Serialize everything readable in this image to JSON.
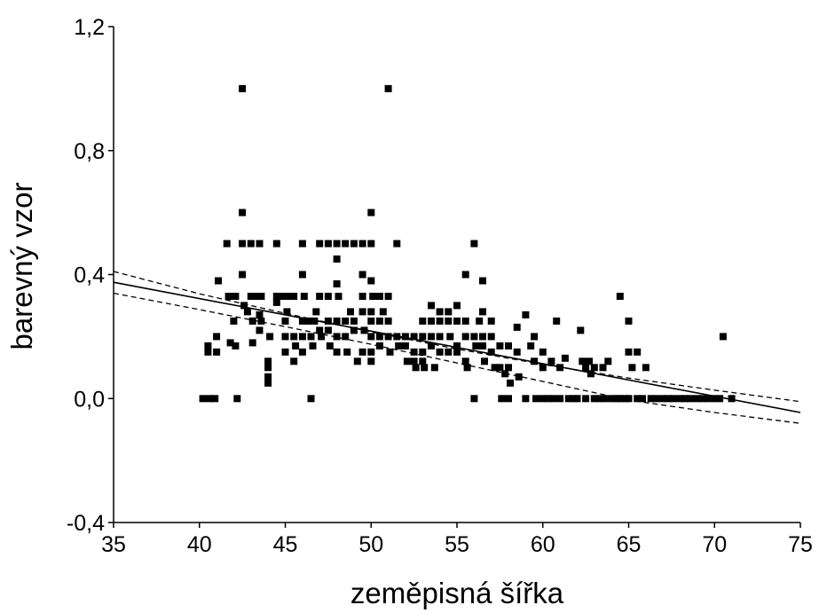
{
  "chart_data": {
    "type": "scatter",
    "xlabel": "zeměpisná šířka",
    "ylabel": "barevný vzor",
    "xlim": [
      35,
      75
    ],
    "ylim": [
      -0.4,
      1.2
    ],
    "x_ticks": [
      35,
      40,
      45,
      50,
      55,
      60,
      65,
      70,
      75
    ],
    "x_tick_labels": [
      "35",
      "40",
      "45",
      "50",
      "55",
      "60",
      "65",
      "70",
      "75"
    ],
    "y_ticks": [
      -0.4,
      0.0,
      0.4,
      0.8,
      1.2
    ],
    "y_tick_labels": [
      "-0,4",
      "0,0",
      "0,4",
      "0,8",
      "1,2"
    ],
    "grid": false,
    "series": [
      {
        "marker": "square",
        "color": "#000000",
        "points": [
          [
            40.2,
            0.0
          ],
          [
            40.6,
            0.0
          ],
          [
            40.9,
            0.0
          ],
          [
            40.5,
            0.17
          ],
          [
            40.5,
            0.15
          ],
          [
            41.0,
            0.2
          ],
          [
            41.0,
            0.15
          ],
          [
            41.1,
            0.38
          ],
          [
            41.6,
            0.5
          ],
          [
            41.7,
            0.33
          ],
          [
            41.9,
            0.33
          ],
          [
            41.8,
            0.18
          ],
          [
            42.0,
            0.25
          ],
          [
            42.1,
            0.33
          ],
          [
            42.2,
            0.0
          ],
          [
            42.1,
            0.17
          ],
          [
            42.5,
            1.0
          ],
          [
            42.5,
            0.6
          ],
          [
            42.5,
            0.5
          ],
          [
            42.5,
            0.4
          ],
          [
            42.6,
            0.3
          ],
          [
            42.8,
            0.28
          ],
          [
            43.0,
            0.5
          ],
          [
            43.0,
            0.33
          ],
          [
            43.1,
            0.25
          ],
          [
            43.1,
            0.18
          ],
          [
            43.3,
            0.33
          ],
          [
            43.5,
            0.5
          ],
          [
            43.6,
            0.33
          ],
          [
            43.5,
            0.27
          ],
          [
            43.6,
            0.25
          ],
          [
            43.5,
            0.22
          ],
          [
            44.0,
            0.12
          ],
          [
            44.0,
            0.1
          ],
          [
            44.0,
            0.07
          ],
          [
            44.0,
            0.05
          ],
          [
            44.1,
            0.2
          ],
          [
            44.5,
            0.5
          ],
          [
            44.5,
            0.33
          ],
          [
            44.5,
            0.31
          ],
          [
            44.6,
            0.33
          ],
          [
            45.0,
            0.33
          ],
          [
            45.1,
            0.28
          ],
          [
            45.0,
            0.25
          ],
          [
            45.0,
            0.2
          ],
          [
            45.0,
            0.15
          ],
          [
            45.3,
            0.33
          ],
          [
            45.5,
            0.33
          ],
          [
            45.5,
            0.2
          ],
          [
            45.5,
            0.12
          ],
          [
            45.6,
            0.17
          ],
          [
            46.0,
            0.5
          ],
          [
            46.0,
            0.4
          ],
          [
            46.1,
            0.33
          ],
          [
            46.0,
            0.25
          ],
          [
            46.0,
            0.2
          ],
          [
            46.0,
            0.15
          ],
          [
            46.3,
            0.25
          ],
          [
            46.5,
            0.0
          ],
          [
            46.5,
            0.2
          ],
          [
            46.6,
            0.17
          ],
          [
            46.7,
            0.25
          ],
          [
            46.8,
            0.28
          ],
          [
            47.0,
            0.5
          ],
          [
            47.0,
            0.33
          ],
          [
            47.0,
            0.22
          ],
          [
            47.1,
            0.2
          ],
          [
            47.5,
            0.5
          ],
          [
            47.5,
            0.33
          ],
          [
            47.5,
            0.25
          ],
          [
            47.5,
            0.22
          ],
          [
            47.6,
            0.17
          ],
          [
            48.0,
            0.5
          ],
          [
            48.0,
            0.45
          ],
          [
            48.0,
            0.37
          ],
          [
            48.1,
            0.33
          ],
          [
            48.0,
            0.25
          ],
          [
            48.0,
            0.2
          ],
          [
            48.0,
            0.15
          ],
          [
            48.5,
            0.5
          ],
          [
            48.5,
            0.25
          ],
          [
            48.5,
            0.2
          ],
          [
            48.6,
            0.15
          ],
          [
            48.8,
            0.28
          ],
          [
            49.0,
            0.5
          ],
          [
            49.0,
            0.25
          ],
          [
            49.0,
            0.22
          ],
          [
            49.2,
            0.12
          ],
          [
            49.5,
            0.5
          ],
          [
            49.5,
            0.4
          ],
          [
            49.5,
            0.33
          ],
          [
            49.5,
            0.28
          ],
          [
            49.6,
            0.22
          ],
          [
            49.5,
            0.15
          ],
          [
            50.0,
            0.6
          ],
          [
            50.0,
            0.5
          ],
          [
            50.0,
            0.38
          ],
          [
            50.1,
            0.33
          ],
          [
            50.0,
            0.28
          ],
          [
            50.0,
            0.25
          ],
          [
            50.0,
            0.2
          ],
          [
            50.0,
            0.15
          ],
          [
            50.0,
            0.12
          ],
          [
            50.5,
            0.33
          ],
          [
            50.5,
            0.25
          ],
          [
            50.5,
            0.2
          ],
          [
            50.5,
            0.17
          ],
          [
            50.7,
            0.28
          ],
          [
            51.0,
            1.0
          ],
          [
            51.0,
            0.33
          ],
          [
            51.0,
            0.25
          ],
          [
            51.0,
            0.2
          ],
          [
            51.1,
            0.15
          ],
          [
            51.5,
            0.5
          ],
          [
            51.5,
            0.2
          ],
          [
            51.6,
            0.17
          ],
          [
            52.0,
            0.2
          ],
          [
            52.0,
            0.17
          ],
          [
            52.1,
            0.12
          ],
          [
            52.5,
            0.2
          ],
          [
            52.5,
            0.15
          ],
          [
            52.5,
            0.12
          ],
          [
            52.6,
            0.1
          ],
          [
            53.0,
            0.25
          ],
          [
            53.0,
            0.2
          ],
          [
            53.0,
            0.15
          ],
          [
            53.0,
            0.12
          ],
          [
            53.1,
            0.1
          ],
          [
            53.5,
            0.3
          ],
          [
            53.5,
            0.25
          ],
          [
            53.5,
            0.2
          ],
          [
            53.5,
            0.17
          ],
          [
            53.7,
            0.1
          ],
          [
            54.0,
            0.28
          ],
          [
            54.0,
            0.25
          ],
          [
            54.0,
            0.2
          ],
          [
            54.0,
            0.15
          ],
          [
            54.5,
            0.28
          ],
          [
            54.5,
            0.25
          ],
          [
            54.5,
            0.15
          ],
          [
            54.6,
            0.2
          ],
          [
            55.0,
            0.3
          ],
          [
            55.0,
            0.25
          ],
          [
            55.0,
            0.17
          ],
          [
            55.0,
            0.15
          ],
          [
            55.5,
            0.4
          ],
          [
            55.5,
            0.25
          ],
          [
            55.5,
            0.2
          ],
          [
            55.5,
            0.12
          ],
          [
            55.6,
            0.1
          ],
          [
            56.0,
            0.5
          ],
          [
            56.0,
            0.0
          ],
          [
            56.0,
            0.2
          ],
          [
            56.1,
            0.17
          ],
          [
            56.3,
            0.25
          ],
          [
            56.5,
            0.38
          ],
          [
            56.5,
            0.28
          ],
          [
            56.5,
            0.2
          ],
          [
            56.5,
            0.17
          ],
          [
            56.6,
            0.12
          ],
          [
            57.0,
            0.25
          ],
          [
            57.0,
            0.2
          ],
          [
            57.0,
            0.15
          ],
          [
            57.2,
            0.1
          ],
          [
            57.5,
            0.17
          ],
          [
            57.5,
            0.1
          ],
          [
            57.6,
            0.0
          ],
          [
            57.8,
            0.08
          ],
          [
            58.0,
            0.0
          ],
          [
            58.0,
            0.17
          ],
          [
            58.0,
            0.1
          ],
          [
            58.1,
            0.05
          ],
          [
            58.5,
            0.23
          ],
          [
            58.5,
            0.15
          ],
          [
            58.6,
            0.07
          ],
          [
            59.0,
            0.27
          ],
          [
            59.0,
            0.0
          ],
          [
            59.3,
            0.17
          ],
          [
            59.5,
            0.2
          ],
          [
            59.5,
            0.12
          ],
          [
            59.6,
            0.0
          ],
          [
            60.0,
            0.15
          ],
          [
            60.0,
            0.1
          ],
          [
            60.0,
            0.0
          ],
          [
            60.3,
            0.0
          ],
          [
            60.5,
            0.12
          ],
          [
            60.6,
            0.0
          ],
          [
            60.8,
            0.25
          ],
          [
            61.0,
            0.1
          ],
          [
            61.0,
            0.0
          ],
          [
            61.3,
            0.13
          ],
          [
            61.5,
            0.0
          ],
          [
            61.8,
            0.0
          ],
          [
            62.0,
            0.0
          ],
          [
            62.2,
            0.22
          ],
          [
            62.3,
            0.12
          ],
          [
            62.5,
            0.1
          ],
          [
            62.5,
            0.0
          ],
          [
            62.7,
            0.12
          ],
          [
            62.8,
            0.08
          ],
          [
            63.0,
            0.1
          ],
          [
            63.0,
            0.0
          ],
          [
            63.3,
            0.0
          ],
          [
            63.5,
            0.1
          ],
          [
            63.6,
            0.0
          ],
          [
            63.8,
            0.12
          ],
          [
            64.0,
            0.0
          ],
          [
            64.3,
            0.0
          ],
          [
            64.5,
            0.33
          ],
          [
            64.5,
            0.0
          ],
          [
            64.8,
            0.0
          ],
          [
            65.0,
            0.25
          ],
          [
            65.0,
            0.15
          ],
          [
            65.0,
            0.0
          ],
          [
            65.2,
            0.1
          ],
          [
            65.5,
            0.15
          ],
          [
            65.5,
            0.0
          ],
          [
            65.8,
            0.0
          ],
          [
            66.0,
            0.1
          ],
          [
            66.3,
            0.0
          ],
          [
            66.6,
            0.0
          ],
          [
            67.0,
            0.0
          ],
          [
            67.3,
            0.0
          ],
          [
            67.6,
            0.0
          ],
          [
            68.0,
            0.0
          ],
          [
            68.3,
            0.0
          ],
          [
            68.6,
            0.0
          ],
          [
            69.0,
            0.0
          ],
          [
            69.3,
            0.0
          ],
          [
            69.6,
            0.0
          ],
          [
            70.0,
            0.0
          ],
          [
            70.3,
            0.0
          ],
          [
            70.5,
            0.2
          ],
          [
            71.0,
            0.0
          ]
        ]
      }
    ],
    "regression": {
      "style": "solid",
      "color": "#000000",
      "points": [
        [
          35,
          0.375
        ],
        [
          75,
          -0.045
        ]
      ]
    },
    "confidence_band": {
      "style": "dashed",
      "color": "#000000",
      "upper": [
        [
          35,
          0.41
        ],
        [
          40,
          0.338
        ],
        [
          45,
          0.275
        ],
        [
          50,
          0.215
        ],
        [
          55,
          0.16
        ],
        [
          60,
          0.11
        ],
        [
          65,
          0.066
        ],
        [
          70,
          0.027
        ],
        [
          75,
          -0.01
        ]
      ],
      "lower": [
        [
          35,
          0.34
        ],
        [
          40,
          0.287
        ],
        [
          45,
          0.232
        ],
        [
          50,
          0.175
        ],
        [
          55,
          0.115
        ],
        [
          60,
          0.055
        ],
        [
          65,
          -0.005
        ],
        [
          70,
          -0.045
        ],
        [
          75,
          -0.08
        ]
      ]
    }
  }
}
